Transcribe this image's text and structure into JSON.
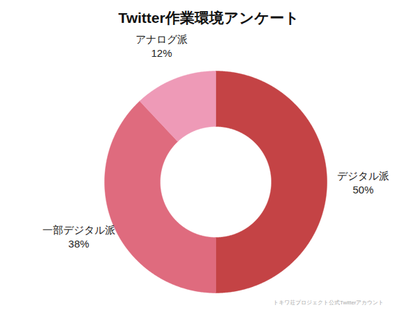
{
  "chart_data": {
    "type": "pie",
    "title": "Twitter作業環境アンケート",
    "caption": "トキワ荘プロジェクト公式Twitterアカウント",
    "categories": [
      "デジタル派",
      "一部デジタル派",
      "アナログ派"
    ],
    "values": [
      50,
      38,
      12
    ],
    "value_labels": [
      "50%",
      "38%",
      "12%"
    ],
    "colors": [
      "#c44345",
      "#df6b7e",
      "#ee9ab7"
    ],
    "data_labels": true
  }
}
